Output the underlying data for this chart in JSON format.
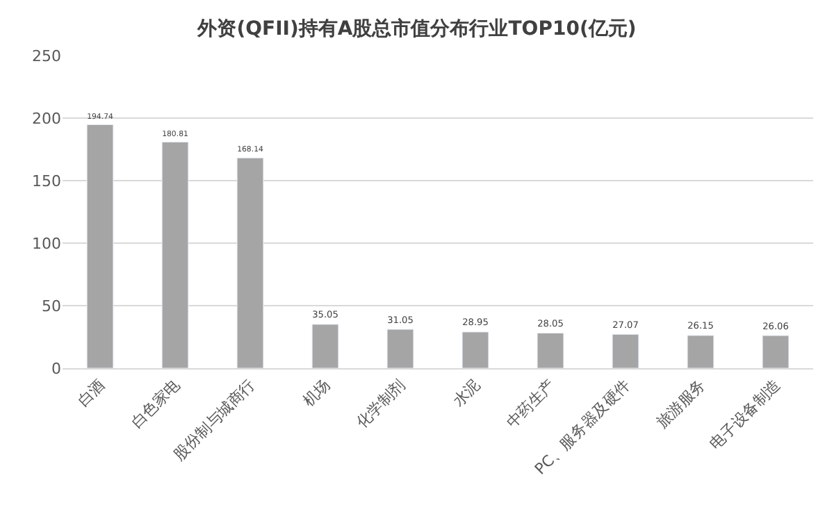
{
  "chart_data": {
    "type": "bar",
    "title": "外资(QFII)持有A股总市值分布行业TOP10(亿元)",
    "categories": [
      "白酒",
      "白色家电",
      "股份制与城商行",
      "机场",
      "化学制剂",
      "水泥",
      "中药生产",
      "PC、服务器及硬件",
      "旅游服务",
      "电子设备制造"
    ],
    "values": [
      194.74,
      180.81,
      168.14,
      35.05,
      31.05,
      28.95,
      28.05,
      27.07,
      26.15,
      26.06
    ],
    "color": "#a5a5a5",
    "ylim": [
      0,
      250
    ],
    "yticks": [
      0,
      50,
      100,
      150,
      200,
      250
    ],
    "grid": "y",
    "data_labels": true
  }
}
